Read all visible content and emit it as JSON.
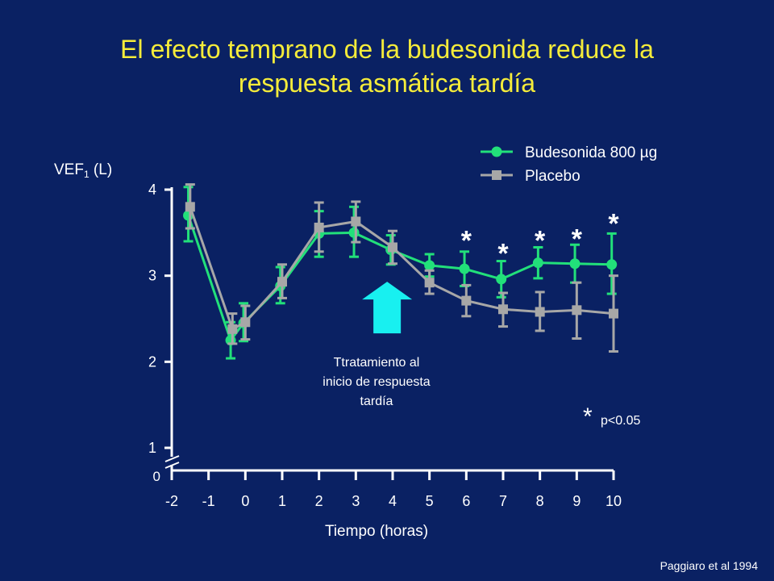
{
  "title_lines": [
    "El efecto temprano de la budesonida reduce la",
    "respuesta asmática tardía"
  ],
  "citation": "Paggiaro et al 1994",
  "chart_data": {
    "type": "line",
    "ylabel": {
      "text": "VEF",
      "subscript": "1",
      "unit": "(L)"
    },
    "xlabel": "Tiempo (horas)",
    "x_ticks": [
      -2,
      -1,
      0,
      1,
      2,
      3,
      4,
      5,
      6,
      7,
      8,
      9,
      10
    ],
    "y_ticks": [
      1,
      2,
      3,
      4
    ],
    "y_break_label": "0",
    "xlim": [
      -2,
      10
    ],
    "ylim": [
      1,
      4
    ],
    "series": [
      {
        "name": "Budesonida 800 µg",
        "marker": "circle",
        "color": "#22e07a",
        "x": [
          -1.55,
          -0.4,
          -0.05,
          0.95,
          2.0,
          2.95,
          3.95,
          5.0,
          5.95,
          6.95,
          7.95,
          8.95,
          9.95
        ],
        "y": [
          3.7,
          2.25,
          2.45,
          2.88,
          3.49,
          3.5,
          3.3,
          3.12,
          3.08,
          2.96,
          3.15,
          3.14,
          3.13
        ],
        "err_low": [
          3.4,
          2.04,
          2.24,
          2.68,
          3.22,
          3.22,
          3.13,
          2.99,
          2.88,
          2.75,
          2.97,
          2.92,
          2.79
        ],
        "err_high": [
          4.03,
          2.46,
          2.68,
          3.1,
          3.75,
          3.8,
          3.47,
          3.25,
          3.28,
          3.17,
          3.33,
          3.36,
          3.49
        ]
      },
      {
        "name": "Placebo",
        "marker": "square",
        "color": "#a7a7a7",
        "x": [
          -1.5,
          -0.35,
          0.0,
          1.0,
          2.0,
          3.0,
          4.0,
          5.0,
          6.0,
          7.0,
          8.0,
          9.0,
          10.0
        ],
        "y": [
          3.8,
          2.38,
          2.46,
          2.93,
          3.56,
          3.63,
          3.33,
          2.92,
          2.71,
          2.61,
          2.58,
          2.6,
          2.56
        ],
        "err_low": [
          3.55,
          2.21,
          2.26,
          2.74,
          3.28,
          3.39,
          3.14,
          2.79,
          2.53,
          2.41,
          2.36,
          2.27,
          2.12
        ],
        "err_high": [
          4.06,
          2.56,
          2.65,
          3.13,
          3.85,
          3.86,
          3.52,
          3.06,
          2.89,
          2.8,
          2.81,
          2.92,
          3.0
        ]
      }
    ],
    "significance_marks": [
      {
        "x": 6,
        "y": 3.45,
        "label": "*"
      },
      {
        "x": 7,
        "y": 3.3,
        "label": "*"
      },
      {
        "x": 8,
        "y": 3.45,
        "label": "*"
      },
      {
        "x": 9,
        "y": 3.47,
        "label": "*"
      },
      {
        "x": 10,
        "y": 3.65,
        "label": "*"
      }
    ],
    "arrow": {
      "x": 3.85,
      "y_bottom": 2.33,
      "y_top": 2.93,
      "color": "#18f0f0",
      "label_lines": [
        "Ttratamiento al",
        "inicio de respuesta",
        "tardía"
      ]
    },
    "significance_note": {
      "star": "*",
      "text": "p<0.05"
    },
    "legend_position": "top-right",
    "grid": false
  }
}
